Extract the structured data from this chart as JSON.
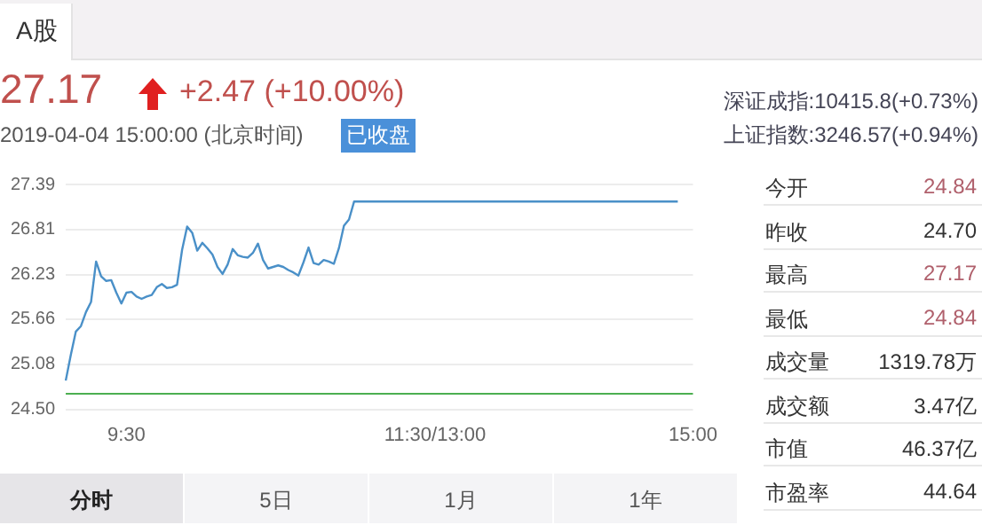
{
  "chart_data": {
    "type": "line",
    "color": "#4a90c8",
    "marker": "none",
    "line_style": "solid",
    "grid": "y",
    "legend": false,
    "categories": [
      null,
      null,
      null,
      null,
      null,
      null,
      null,
      null,
      null,
      null,
      null,
      null,
      "9:30",
      null,
      null,
      null,
      null,
      null,
      null,
      null,
      null,
      null,
      null,
      null,
      null,
      null,
      null,
      null,
      null,
      null,
      null,
      null,
      null,
      null,
      null,
      null,
      null,
      null,
      null,
      null,
      null,
      null,
      null,
      null,
      null,
      null,
      null,
      null,
      null,
      null,
      null,
      null,
      null,
      null,
      null,
      null,
      null,
      null,
      null,
      null,
      null,
      null,
      null,
      null,
      null,
      null,
      null,
      null,
      null,
      null,
      null,
      null,
      null,
      "11:30/13:00",
      null,
      null,
      null,
      null,
      null,
      null,
      null,
      null,
      null,
      null,
      null,
      null,
      null,
      null,
      null,
      null,
      null,
      null,
      null,
      null,
      null,
      null,
      null,
      null,
      null,
      null,
      null,
      null,
      null,
      null,
      null,
      null,
      null,
      null,
      null,
      null,
      null,
      null,
      null,
      null,
      null,
      null,
      null,
      null,
      null,
      null,
      null,
      null,
      null,
      null,
      "15:00"
    ],
    "values": [
      24.87,
      25.2,
      25.5,
      25.57,
      25.75,
      25.88,
      26.4,
      26.21,
      26.15,
      26.16,
      26,
      25.86,
      26,
      26.01,
      25.95,
      25.92,
      25.95,
      25.97,
      26.07,
      26.11,
      26.06,
      26.07,
      26.1,
      26.55,
      26.85,
      26.77,
      26.54,
      26.64,
      26.57,
      26.49,
      26.33,
      26.24,
      26.36,
      26.56,
      26.48,
      26.46,
      26.45,
      26.51,
      26.63,
      26.42,
      26.31,
      26.33,
      26.35,
      26.33,
      26.29,
      26.26,
      26.22,
      26.39,
      26.58,
      26.38,
      26.36,
      26.42,
      26.4,
      26.37,
      26.57,
      26.86,
      26.94,
      27.17,
      27.17,
      27.17,
      27.17,
      27.17,
      27.17,
      27.17,
      27.17,
      27.17,
      27.17,
      27.17,
      27.17,
      27.17,
      27.17,
      27.17,
      27.17,
      27.17,
      27.17,
      27.17,
      27.17,
      27.17,
      27.17,
      27.17,
      27.17,
      27.17,
      27.17,
      27.17,
      27.17,
      27.17,
      27.17,
      27.17,
      27.17,
      27.17,
      27.17,
      27.17,
      27.17,
      27.17,
      27.17,
      27.17,
      27.17,
      27.17,
      27.17,
      27.17,
      27.17,
      27.17,
      27.17,
      27.17,
      27.17,
      27.17,
      27.17,
      27.17,
      27.17,
      27.17,
      27.17,
      27.17,
      27.17,
      27.17,
      27.17,
      27.17,
      27.17,
      27.17,
      27.17,
      27.17,
      27.17,
      27.17,
      null,
      null,
      null
    ],
    "ylim": [
      24.5,
      27.39
    ],
    "yticks": [
      {
        "value": 24.5,
        "label": "24.50"
      },
      25.08,
      25.66,
      26.23,
      26.81,
      27.39
    ],
    "ref_lines": [
      {
        "axis": "y",
        "value": 24.7,
        "color": "#4caf50"
      }
    ],
    "annotations": [
      "A股",
      "27.17",
      "+2.47 (+10.00%)",
      "2019-04-04 15:00:00  (北京时间)",
      "已收盘",
      "深证成指:10415.8(+0.73%)",
      "上证指数:3246.57(+0.94%)",
      "今开",
      "24.84",
      "昨收",
      "24.70",
      "最高",
      "27.17",
      "最低",
      "24.84",
      "成交量",
      "1319.78万",
      "成交额",
      "3.47亿",
      "市值",
      "46.37亿",
      "市盈率",
      "44.64",
      "分时",
      "5日",
      "1月",
      "1年"
    ]
  }
}
